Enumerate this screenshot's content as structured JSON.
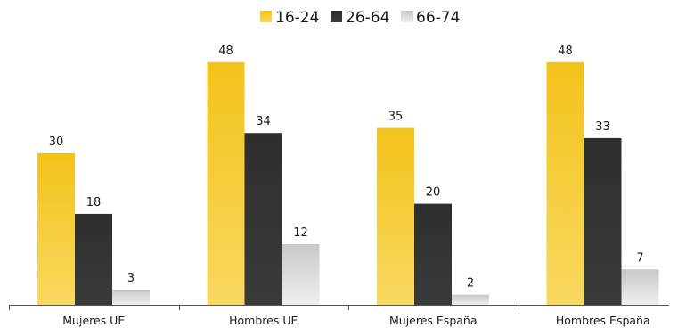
{
  "chart_data": {
    "type": "bar",
    "categories": [
      "Mujeres UE",
      "Hombres UE",
      "Mujeres España",
      "Hombres España"
    ],
    "series": [
      {
        "name": "16-24",
        "values": [
          30,
          48,
          35,
          48
        ],
        "color": "#f5c21b"
      },
      {
        "name": "26-64",
        "values": [
          18,
          34,
          20,
          33
        ],
        "color": "#333333"
      },
      {
        "name": "66-74",
        "values": [
          3,
          12,
          2,
          7
        ],
        "color": "#cfcfcf"
      }
    ],
    "ylim": [
      0,
      50
    ],
    "grid": false,
    "legend_position": "top-center",
    "data_labels": true
  }
}
